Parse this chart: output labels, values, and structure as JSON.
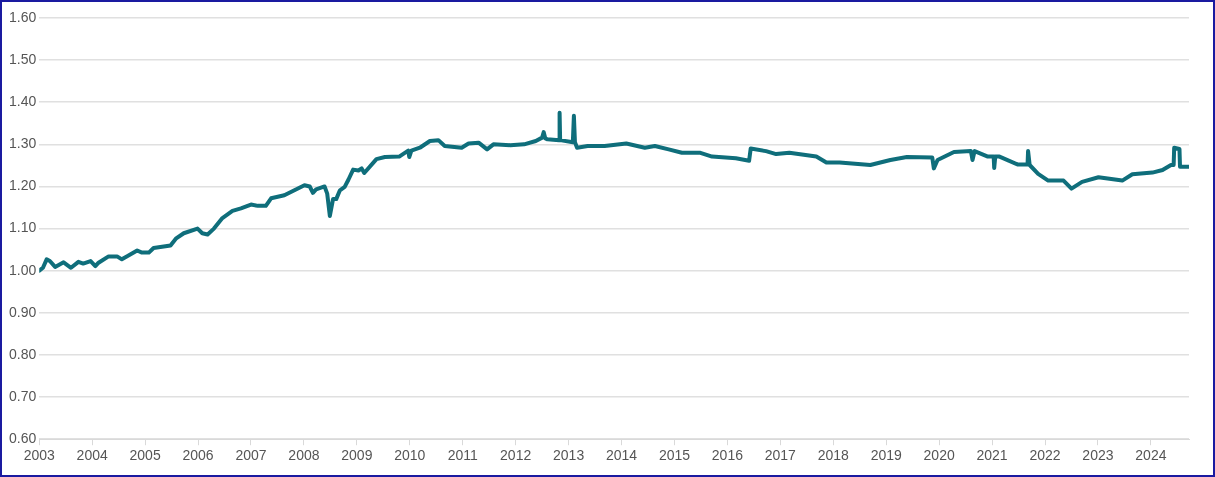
{
  "chart_data": {
    "type": "line",
    "x": [
      2003.0,
      2003.07,
      2003.14,
      2003.2,
      2003.3,
      2003.46,
      2003.6,
      2003.74,
      2003.83,
      2003.97,
      2004.06,
      2004.12,
      2004.31,
      2004.47,
      2004.56,
      2004.85,
      2004.94,
      2005.07,
      2005.16,
      2005.48,
      2005.58,
      2005.73,
      2005.99,
      2006.08,
      2006.18,
      2006.3,
      2006.46,
      2006.65,
      2006.81,
      2007.0,
      2007.13,
      2007.28,
      2007.38,
      2007.63,
      2007.82,
      2008.01,
      2008.11,
      2008.17,
      2008.23,
      2008.39,
      2008.44,
      2008.49,
      2008.55,
      2008.61,
      2008.68,
      2008.77,
      2008.84,
      2008.93,
      2009.03,
      2009.09,
      2009.14,
      2009.37,
      2009.53,
      2009.8,
      2009.97,
      2009.99,
      2010.03,
      2010.19,
      2010.38,
      2010.54,
      2010.66,
      2010.98,
      2011.11,
      2011.3,
      2011.46,
      2011.58,
      2011.9,
      2012.16,
      2012.38,
      2012.5,
      2012.53,
      2012.56,
      2012.6,
      2012.82,
      2012.83,
      2012.84,
      2013.08,
      2013.1,
      2013.12,
      2013.16,
      2013.36,
      2013.68,
      2014.09,
      2014.44,
      2014.63,
      2014.89,
      2015.14,
      2015.49,
      2015.71,
      2016.16,
      2016.41,
      2016.44,
      2016.73,
      2016.92,
      2017.17,
      2017.68,
      2017.87,
      2018.12,
      2018.7,
      2019.08,
      2019.39,
      2019.87,
      2019.9,
      2019.97,
      2020.28,
      2020.6,
      2020.63,
      2020.67,
      2020.92,
      2021.03,
      2021.04,
      2021.06,
      2021.14,
      2021.49,
      2021.67,
      2021.68,
      2021.71,
      2021.87,
      2022.06,
      2022.35,
      2022.5,
      2022.7,
      2023.01,
      2023.46,
      2023.65,
      2024.03,
      2024.22,
      2024.38,
      2024.43,
      2024.44,
      2024.54,
      2024.55,
      2024.72
    ],
    "series": [
      {
        "color": "#0f6e7b",
        "values": [
          1.0,
          1.007,
          1.027,
          1.023,
          1.009,
          1.02,
          1.007,
          1.021,
          1.017,
          1.023,
          1.011,
          1.019,
          1.034,
          1.034,
          1.027,
          1.048,
          1.043,
          1.043,
          1.054,
          1.06,
          1.076,
          1.089,
          1.1,
          1.089,
          1.086,
          1.1,
          1.125,
          1.142,
          1.148,
          1.157,
          1.154,
          1.154,
          1.172,
          1.179,
          1.191,
          1.203,
          1.2,
          1.185,
          1.193,
          1.2,
          1.183,
          1.13,
          1.17,
          1.17,
          1.191,
          1.199,
          1.216,
          1.24,
          1.238,
          1.243,
          1.232,
          1.265,
          1.27,
          1.271,
          1.285,
          1.27,
          1.285,
          1.292,
          1.308,
          1.31,
          1.296,
          1.292,
          1.302,
          1.304,
          1.288,
          1.3,
          1.298,
          1.3,
          1.308,
          1.316,
          1.329,
          1.314,
          1.312,
          1.31,
          1.375,
          1.31,
          1.305,
          1.368,
          1.305,
          1.292,
          1.296,
          1.296,
          1.302,
          1.292,
          1.296,
          1.288,
          1.28,
          1.28,
          1.271,
          1.267,
          1.261,
          1.29,
          1.284,
          1.277,
          1.28,
          1.271,
          1.257,
          1.257,
          1.251,
          1.263,
          1.27,
          1.269,
          1.243,
          1.263,
          1.282,
          1.284,
          1.263,
          1.284,
          1.271,
          1.271,
          1.244,
          1.271,
          1.271,
          1.252,
          1.252,
          1.284,
          1.251,
          1.23,
          1.214,
          1.214,
          1.195,
          1.211,
          1.222,
          1.214,
          1.229,
          1.233,
          1.239,
          1.251,
          1.251,
          1.292,
          1.289,
          1.247,
          1.247
        ]
      }
    ],
    "xlim": [
      2003,
      2024.72
    ],
    "xticks": [
      2003,
      2004,
      2005,
      2006,
      2007,
      2008,
      2009,
      2010,
      2011,
      2012,
      2013,
      2014,
      2015,
      2016,
      2017,
      2018,
      2019,
      2020,
      2021,
      2022,
      2023,
      2024
    ],
    "ylim": [
      0.6,
      1.6
    ],
    "yticks": [
      {
        "value": 0.6,
        "label": "0.60"
      },
      {
        "value": 0.7,
        "label": "0.70"
      },
      {
        "value": 0.8,
        "label": "0.80"
      },
      {
        "value": 0.9,
        "label": "0.90"
      },
      {
        "value": 1.0,
        "label": "1.00"
      },
      {
        "value": 1.1,
        "label": "1.10"
      },
      {
        "value": 1.2,
        "label": "1.20"
      },
      {
        "value": 1.3,
        "label": "1.30"
      },
      {
        "value": 1.4,
        "label": "1.40"
      },
      {
        "value": 1.5,
        "label": "1.50"
      },
      {
        "value": 1.6,
        "label": "1.60"
      }
    ],
    "grid": "y",
    "legend": false,
    "marker": "none",
    "line_style": "solid"
  }
}
